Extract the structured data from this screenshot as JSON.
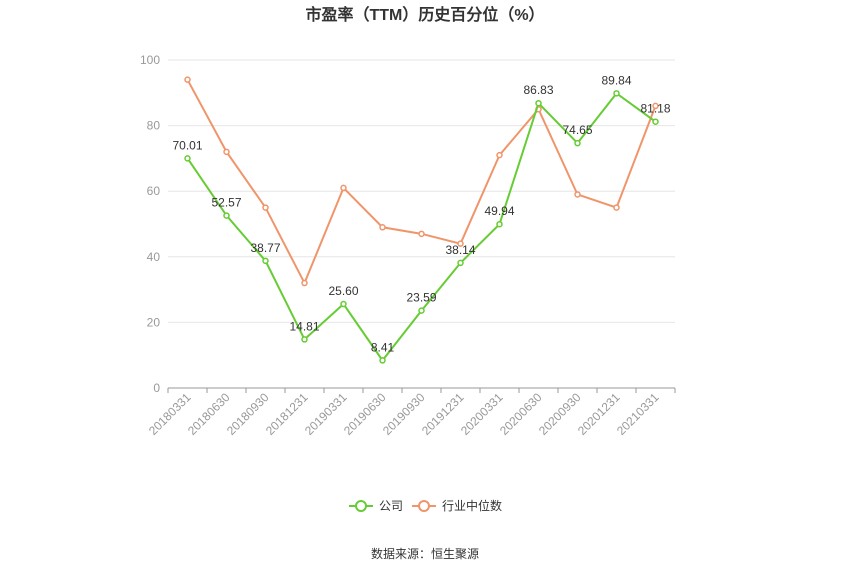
{
  "chart_data": {
    "type": "line",
    "title": "市盈率（TTM）历史百分位（%）",
    "categories": [
      "20180331",
      "20180630",
      "20180930",
      "20181231",
      "20190331",
      "20190630",
      "20190930",
      "20191231",
      "20200331",
      "20200630",
      "20200930",
      "20201231",
      "20210331"
    ],
    "ylim": [
      0,
      100
    ],
    "yticks": [
      0,
      20,
      40,
      60,
      80,
      100
    ],
    "grid": true,
    "legend_position": "bottom",
    "series": [
      {
        "name": "公司",
        "color": "#66cc33",
        "values": [
          70.01,
          52.57,
          38.77,
          14.81,
          25.6,
          8.41,
          23.59,
          38.14,
          49.94,
          86.83,
          74.65,
          89.84,
          81.18
        ],
        "labels": [
          "70.01",
          "52.57",
          "38.77",
          "14.81",
          "25.60",
          "8.41",
          "23.59",
          "38.14",
          "49.94",
          "86.83",
          "74.65",
          "89.84",
          "81.18"
        ]
      },
      {
        "name": "行业中位数",
        "color": "#f0956a",
        "values": [
          94,
          72,
          55,
          32,
          61,
          49,
          47,
          44,
          71,
          85,
          59,
          55,
          86
        ]
      }
    ]
  },
  "source_text": "数据来源：恒生聚源"
}
